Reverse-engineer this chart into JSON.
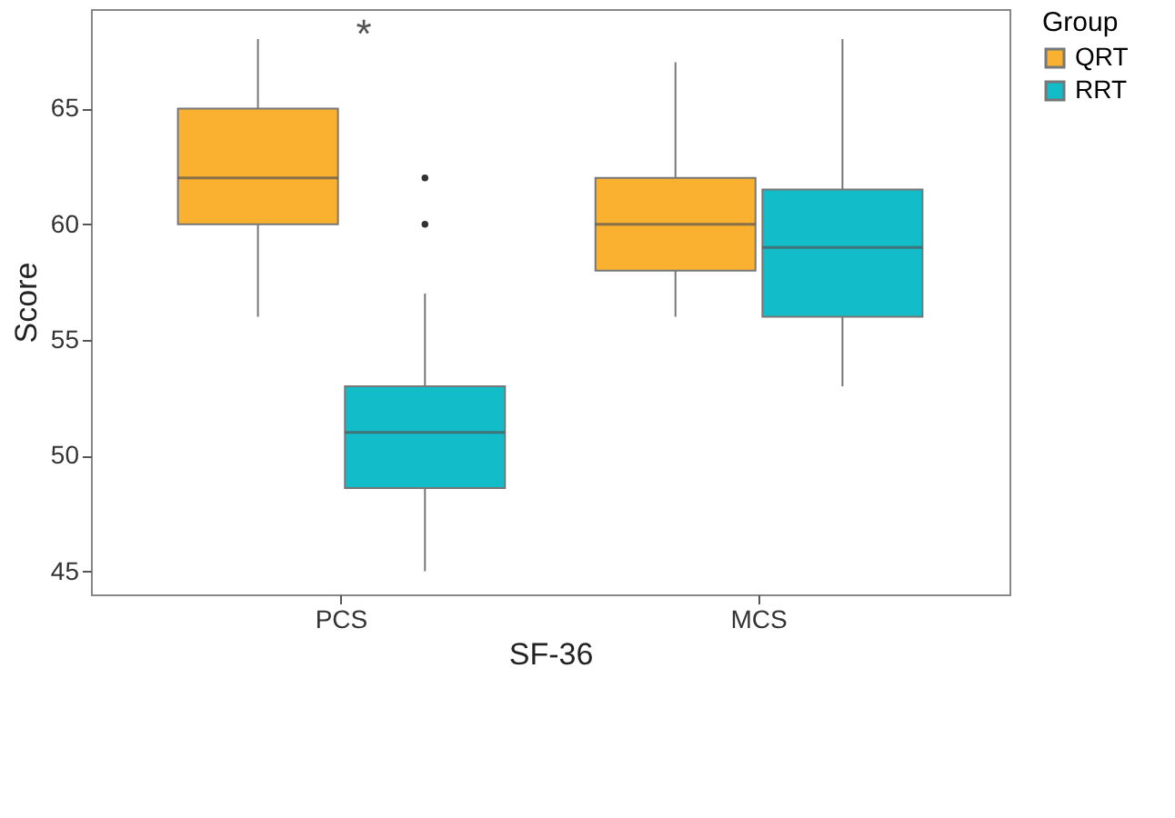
{
  "chart_data": {
    "type": "box",
    "xlabel": "SF-36",
    "ylabel": "Score",
    "legend_title": "Group",
    "categories": [
      "PCS",
      "MCS"
    ],
    "series": [
      {
        "name": "QRT",
        "color": "#fbb130",
        "boxes": [
          {
            "low": 56,
            "q1": 60,
            "median": 62,
            "q3": 65,
            "high": 68
          },
          {
            "low": 56,
            "q1": 58,
            "median": 60,
            "q3": 62,
            "high": 67
          }
        ]
      },
      {
        "name": "RRT",
        "color": "#12bcc8",
        "boxes": [
          {
            "low": 45,
            "q1": 48.6,
            "median": 51,
            "q3": 53,
            "high": 57,
            "outliers": [
              60,
              62
            ]
          },
          {
            "low": 53,
            "q1": 56,
            "median": 59,
            "q3": 61.5,
            "high": 68
          }
        ]
      }
    ],
    "ylim": [
      44,
      69.3
    ],
    "yticks": [
      45,
      50,
      55,
      60,
      65
    ],
    "grid": false,
    "legend": "right",
    "annotations": [
      "*"
    ]
  }
}
